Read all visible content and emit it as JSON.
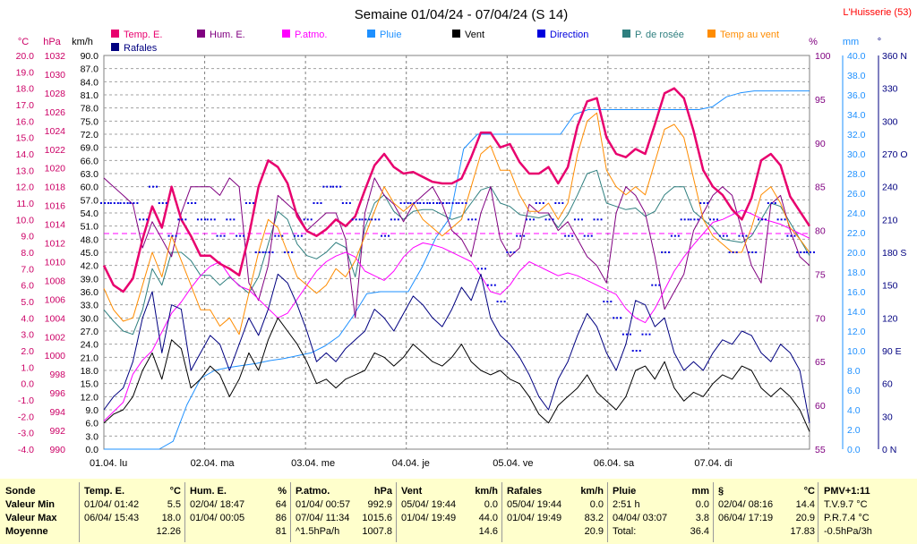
{
  "chart_data": {
    "type": "line",
    "title": "Semaine 01/04/24 - 07/04/24 (S 14)",
    "station": "L'Huisserie (53)",
    "x_tick_labels": [
      "01.04. lu",
      "02.04. ma",
      "03.04. me",
      "04.04. je",
      "05.04. ve",
      "06.04. sa",
      "07.04. di"
    ],
    "axes": {
      "temp": {
        "unit": "°C",
        "min": -4,
        "max": 20,
        "ticks": [
          "20.0",
          "19.0",
          "18.0",
          "17.0",
          "16.0",
          "15.0",
          "14.0",
          "13.0",
          "12.0",
          "11.0",
          "10.0",
          "9.0",
          "8.0",
          "7.0",
          "6.0",
          "5.0",
          "4.0",
          "3.0",
          "2.0",
          "1.0",
          "0.0",
          "-1.0",
          "-2.0",
          "-3.0",
          "-4.0"
        ]
      },
      "pressure": {
        "unit": "hPa",
        "min": 990,
        "max": 1032,
        "ticks": [
          "1032",
          "1030",
          "1028",
          "1026",
          "1024",
          "1022",
          "1020",
          "1018",
          "1016",
          "1014",
          "1012",
          "1010",
          "1008",
          "1006",
          "1004",
          "1002",
          "1000",
          "998",
          "996",
          "994",
          "992",
          "990"
        ]
      },
      "wind": {
        "unit": "km/h",
        "min": 0,
        "max": 90,
        "ticks": [
          "90.0",
          "87.0",
          "84.0",
          "81.0",
          "78.0",
          "75.0",
          "72.0",
          "69.0",
          "66.0",
          "63.0",
          "60.0",
          "57.0",
          "54.0",
          "51.0",
          "48.0",
          "45.0",
          "42.0",
          "39.0",
          "36.0",
          "33.0",
          "30.0",
          "27.0",
          "24.0",
          "21.0",
          "18.0",
          "15.0",
          "12.0",
          "9.0",
          "6.0",
          "3.0",
          "0.0"
        ]
      },
      "humidity": {
        "unit": "%",
        "min": 55,
        "max": 100,
        "ticks": [
          "100",
          "95",
          "90",
          "85",
          "80",
          "75",
          "70",
          "65",
          "60",
          "55"
        ]
      },
      "rain": {
        "unit": "mm",
        "min": 0,
        "max": 40,
        "ticks": [
          "40.0",
          "38.0",
          "36.0",
          "34.0",
          "32.0",
          "30.0",
          "28.0",
          "26.0",
          "24.0",
          "22.0",
          "20.0",
          "18.0",
          "16.0",
          "14.0",
          "12.0",
          "10.0",
          "8.0",
          "6.0",
          "4.0",
          "2.0",
          "0.0"
        ]
      },
      "direction": {
        "unit": "°",
        "min": 0,
        "max": 360,
        "ticks": [
          "360 N",
          "330",
          "300",
          "270 O",
          "240",
          "210",
          "180 S",
          "150",
          "120",
          "90 E",
          "60",
          "30",
          "0 N"
        ]
      }
    },
    "legend": [
      {
        "name": "Temp. E.",
        "color": "#e8006e"
      },
      {
        "name": "Hum. E.",
        "color": "#800080"
      },
      {
        "name": "P.atmo.",
        "color": "#ff00ff"
      },
      {
        "name": "Pluie",
        "color": "#1e90ff"
      },
      {
        "name": "Vent",
        "color": "#000000"
      },
      {
        "name": "Direction",
        "color": "#0000dd"
      },
      {
        "name": "P. de rosée",
        "color": "#2f7f7f"
      },
      {
        "name": "Temp au vent",
        "color": "#ff8c00"
      },
      {
        "name": "Rafales",
        "color": "#000080"
      }
    ],
    "series": [
      {
        "name": "Temp. E.",
        "axis": "temp",
        "color": "#e8006e",
        "values": [
          7.2,
          6.0,
          5.6,
          6.4,
          8.8,
          10.8,
          9.5,
          12.0,
          10.0,
          9.0,
          7.8,
          7.8,
          7.3,
          7.0,
          6.6,
          9.0,
          12.0,
          13.6,
          13.2,
          12.2,
          10.2,
          9.3,
          9.0,
          9.4,
          10.0,
          9.6,
          10.2,
          11.8,
          13.3,
          14.0,
          13.2,
          12.8,
          12.9,
          12.6,
          12.3,
          12.2,
          12.2,
          12.5,
          13.8,
          15.3,
          15.3,
          14.4,
          14.6,
          13.5,
          12.8,
          12.8,
          13.2,
          12.2,
          13.2,
          15.7,
          17.2,
          17.4,
          15.0,
          14.0,
          13.8,
          14.3,
          14.0,
          15.8,
          17.7,
          18.0,
          17.4,
          15.4,
          13.0,
          12.0,
          11.5,
          10.6,
          10.0,
          11.3,
          13.6,
          14.0,
          13.3,
          11.4,
          10.5,
          9.6
        ]
      },
      {
        "name": "Hum. E.",
        "axis": "humidity",
        "color": "#800080",
        "values": [
          86,
          85,
          84,
          83,
          78,
          81,
          79,
          77,
          82,
          85,
          85,
          85,
          84,
          86,
          85,
          74,
          72,
          76,
          84,
          83,
          82,
          80,
          81,
          82,
          82,
          79,
          70,
          82,
          86,
          84,
          83,
          81,
          83,
          84,
          85,
          83,
          80,
          79,
          77,
          82,
          85,
          79,
          77,
          78,
          83,
          82,
          82,
          80,
          81,
          79,
          77,
          76,
          74,
          82,
          85,
          84,
          82,
          77,
          71,
          73,
          75,
          80,
          82,
          84,
          85,
          84,
          80,
          76,
          74,
          83,
          84,
          80,
          77,
          76
        ]
      },
      {
        "name": "P.atmo.",
        "axis": "pressure",
        "color": "#ff00ff",
        "values": [
          993,
          994,
          995,
          998,
          999.5,
          1000.5,
          1002.5,
          1004.5,
          1005.7,
          1007.2,
          1008.5,
          1009.5,
          1010,
          1008.5,
          1007.4,
          1007,
          1006,
          1005,
          1004,
          1004.5,
          1006,
          1007.5,
          1009,
          1010,
          1010.6,
          1011,
          1010.5,
          1009,
          1008.5,
          1008,
          1009,
          1010.5,
          1011.5,
          1012,
          1011.8,
          1011.5,
          1011,
          1010.5,
          1010,
          1008.5,
          1006.8,
          1006.5,
          1007.5,
          1009,
          1010,
          1009.5,
          1009,
          1008.5,
          1008.8,
          1008.5,
          1008,
          1007.5,
          1007,
          1006.5,
          1005,
          1004,
          1003.5,
          1005,
          1007,
          1009,
          1010.5,
          1011.8,
          1013,
          1014.2,
          1014.5,
          1015,
          1015.5,
          1015.1,
          1014.6,
          1014.3,
          1014,
          1013.5,
          1013,
          1012.5
        ]
      },
      {
        "name": "Vent",
        "axis": "wind",
        "color": "#000000",
        "values": [
          6,
          8,
          9,
          12,
          18,
          22,
          16,
          25,
          23,
          14,
          16,
          19,
          17,
          12,
          16,
          22,
          18,
          25,
          30,
          27,
          24,
          20,
          15,
          16,
          14,
          16,
          17,
          18,
          22,
          21,
          19,
          21,
          24,
          22,
          20,
          19,
          21,
          24,
          20,
          18,
          17,
          18,
          16,
          15,
          12,
          8,
          6,
          10,
          12,
          14,
          17,
          13,
          11,
          9,
          12,
          18,
          19,
          16,
          20,
          14,
          11,
          13,
          12,
          15,
          17,
          16,
          19,
          18,
          14,
          12,
          14,
          12,
          9,
          4
        ]
      },
      {
        "name": "Rafales",
        "axis": "wind",
        "color": "#000080",
        "values": [
          9,
          12,
          14,
          20,
          30,
          36,
          22,
          33,
          32,
          18,
          22,
          26,
          24,
          18,
          24,
          30,
          26,
          32,
          40,
          38,
          33,
          27,
          20,
          22,
          20,
          23,
          25,
          27,
          32,
          30,
          27,
          31,
          35,
          33,
          30,
          28,
          32,
          37,
          34,
          40,
          30,
          26,
          24,
          21,
          17,
          12,
          9,
          16,
          20,
          26,
          31,
          28,
          22,
          18,
          24,
          34,
          33,
          28,
          30,
          22,
          18,
          20,
          18,
          22,
          25,
          24,
          27,
          26,
          22,
          20,
          24,
          22,
          18,
          6
        ]
      },
      {
        "name": "Pluie",
        "axis": "rain",
        "color": "#1e90ff",
        "values": [
          0,
          0,
          0,
          0,
          0,
          0.8,
          4.5,
          7.2,
          8.0,
          8.3,
          8.5,
          8.7,
          9.0,
          9.2,
          9.5,
          9.8,
          10.5,
          11.5,
          13.5,
          15.8,
          16.0,
          16.0,
          16.0,
          18.5,
          21.5,
          23.5,
          30.5,
          32.0,
          32.0,
          32.0,
          32.0,
          32.0,
          32.0,
          32.0,
          34.0,
          34.5,
          34.5,
          34.5,
          34.5,
          34.5,
          34.5,
          34.5,
          34.5,
          34.5,
          34.8,
          35.8,
          36.2,
          36.4,
          36.4,
          36.4,
          36.4,
          36.4
        ]
      },
      {
        "name": "Direction",
        "axis": "direction",
        "color": "#0000dd",
        "values": [
          225,
          225,
          225,
          225,
          210,
          240,
          225,
          195,
          210,
          225,
          210,
          210,
          195,
          210,
          195,
          225,
          180,
          180,
          195,
          180,
          195,
          210,
          225,
          240,
          240,
          225,
          210,
          210,
          210,
          195,
          210,
          225,
          225,
          225,
          225,
          225,
          225,
          225,
          210,
          165,
          150,
          135,
          180,
          195,
          210,
          225,
          210,
          225,
          195,
          210,
          195,
          210,
          135,
          120,
          105,
          90,
          105,
          150,
          180,
          195,
          210,
          210,
          225,
          210,
          195,
          180,
          195,
          180,
          210,
          225,
          210,
          195,
          180,
          180
        ]
      },
      {
        "name": "P. de rosée",
        "axis": "temp",
        "color": "#2f7f7f",
        "values": [
          4.5,
          3.8,
          3.2,
          3.0,
          4.5,
          7.0,
          6.0,
          8.0,
          8.0,
          7.5,
          6.6,
          6.6,
          6.0,
          6.5,
          6.0,
          5.5,
          6.5,
          8.5,
          10.5,
          10.0,
          8.5,
          7.8,
          7.6,
          8.0,
          8.6,
          8.3,
          6.5,
          9.5,
          11.0,
          11.5,
          10.5,
          10.0,
          10.5,
          10.6,
          10.6,
          10.3,
          10.0,
          10.2,
          11.0,
          11.8,
          12.0,
          11.0,
          10.8,
          10.3,
          10.2,
          10.1,
          10.3,
          9.5,
          10.3,
          11.5,
          12.8,
          13.0,
          11.0,
          10.8,
          10.6,
          10.7,
          10.2,
          10.5,
          11.5,
          12.0,
          12.0,
          10.5,
          10.0,
          9.5,
          8.8,
          8.7,
          8.6,
          9.0,
          10.0,
          11.0,
          10.8,
          9.8,
          8.8,
          7.8
        ]
      },
      {
        "name": "Temp au vent",
        "axis": "temp",
        "color": "#ff8c00",
        "values": [
          5.8,
          4.5,
          3.8,
          4.0,
          6.0,
          8.0,
          6.5,
          9.0,
          7.5,
          6.0,
          4.5,
          4.5,
          3.5,
          4.0,
          3.0,
          5.5,
          8.0,
          10.0,
          9.5,
          8.0,
          6.5,
          6.0,
          5.5,
          6.0,
          7.0,
          6.5,
          7.5,
          9.0,
          10.5,
          12.0,
          11.0,
          10.5,
          11.0,
          10.0,
          9.5,
          9.0,
          9.5,
          10.0,
          12.0,
          14.0,
          14.5,
          13.0,
          13.0,
          11.5,
          10.5,
          10.5,
          11.0,
          10.0,
          11.0,
          14.0,
          16.0,
          16.5,
          13.0,
          12.0,
          11.5,
          12.0,
          11.5,
          13.5,
          15.5,
          15.8,
          15.0,
          12.5,
          10.0,
          9.0,
          8.5,
          8.0,
          8.0,
          9.5,
          11.5,
          12.0,
          11.0,
          9.5,
          8.8,
          8.0
        ]
      }
    ],
    "pressure_reference_hPa": 1013
  },
  "summary": {
    "sonde": {
      "title": "Sonde",
      "rows": [
        "Valeur Min",
        "Valeur Max",
        "Moyenne"
      ]
    },
    "blocks": [
      {
        "title": "Temp. E.",
        "unit": "°C",
        "rows": [
          [
            "01/04/ 01:42",
            "5.5"
          ],
          [
            "06/04/ 15:43",
            "18.0"
          ],
          [
            "",
            "12.26"
          ]
        ]
      },
      {
        "title": "Hum. E.",
        "unit": "%",
        "rows": [
          [
            "02/04/ 18:47",
            "64"
          ],
          [
            "01/04/ 00:05",
            "86"
          ],
          [
            "",
            "81"
          ]
        ]
      },
      {
        "title": "P.atmo.",
        "unit": "hPa",
        "rows": [
          [
            "01/04/ 00:57",
            "992.9"
          ],
          [
            "07/04/ 11:34",
            "1015.6"
          ],
          [
            "^1.5hPa/h",
            "1007.8"
          ]
        ]
      },
      {
        "title": "Vent",
        "unit": "km/h",
        "rows": [
          [
            "05/04/ 19:44",
            "0.0"
          ],
          [
            "01/04/ 19:49",
            "44.0"
          ],
          [
            "",
            "14.6"
          ]
        ]
      },
      {
        "title": "Rafales",
        "unit": "km/h",
        "rows": [
          [
            "05/04/ 19:44",
            "0.0"
          ],
          [
            "01/04/ 19:49",
            "83.2"
          ],
          [
            "",
            "20.9"
          ]
        ]
      },
      {
        "title": "Pluie",
        "unit": "mm",
        "rows": [
          [
            "2:51 h",
            "0.0"
          ],
          [
            "04/04/ 03:07",
            "3.8"
          ],
          [
            "Total:",
            "36.4"
          ]
        ]
      },
      {
        "title": "§",
        "unit": "°C",
        "rows": [
          [
            "02/04/ 08:16",
            "14.4"
          ],
          [
            "06/04/ 17:19",
            "20.9"
          ],
          [
            "",
            "17.83"
          ]
        ]
      }
    ],
    "pmv": {
      "title": "PMV+1:11",
      "rows": [
        "T.V.9.7 °C",
        "P.R.7.4 °C",
        "-0.5hPa/3h"
      ]
    }
  }
}
